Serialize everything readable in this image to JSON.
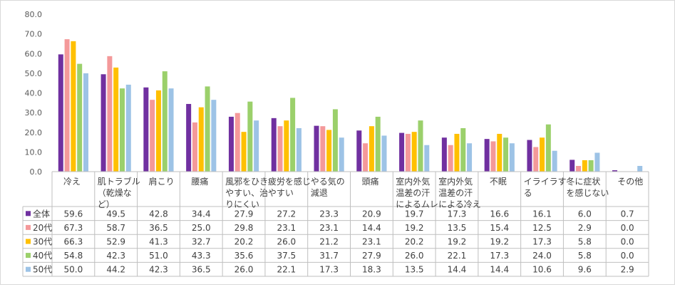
{
  "chart_data": {
    "type": "bar",
    "title": "",
    "xlabel": "",
    "ylabel": "",
    "ylim": [
      0,
      80
    ],
    "y_ticks": [
      "0.0",
      "10.0",
      "20.0",
      "30.0",
      "40.0",
      "50.0",
      "60.0",
      "70.0",
      "80.0"
    ],
    "grid": false,
    "legend": "left-of-table",
    "categories": [
      [
        "冷え"
      ],
      [
        "肌トラブル",
        "（乾燥な",
        "ど）"
      ],
      [
        "肩こり"
      ],
      [
        "腰痛"
      ],
      [
        "風邪をひき",
        "やすい、治",
        "りにくい"
      ],
      [
        "疲労を感じ",
        "やすい"
      ],
      [
        "やる気の",
        "減退"
      ],
      [
        "頭痛"
      ],
      [
        "室内外気",
        "温差の汗",
        "によるムレ"
      ],
      [
        "室内外気",
        "温差の汗",
        "による冷え"
      ],
      [
        "不眠"
      ],
      [
        "イライラす",
        "る"
      ],
      [
        "冬に症状",
        "を感じない"
      ],
      [
        "その他"
      ]
    ],
    "series": [
      {
        "name": "全体",
        "color": "#7030a0",
        "values": [
          59.6,
          49.5,
          42.8,
          34.4,
          27.9,
          27.2,
          23.3,
          20.9,
          19.7,
          17.3,
          16.6,
          16.1,
          6.0,
          0.7
        ],
        "labels": [
          "59.6",
          "49.5",
          "42.8",
          "34.4",
          "27.9",
          "27.2",
          "23.3",
          "20.9",
          "19.7",
          "17.3",
          "16.6",
          "16.1",
          "6.0",
          "0.7"
        ]
      },
      {
        "name": "20代",
        "color": "#f4999a",
        "values": [
          67.3,
          58.7,
          36.5,
          25.0,
          29.8,
          23.1,
          23.1,
          14.4,
          19.2,
          13.5,
          15.4,
          12.5,
          2.9,
          0.0
        ],
        "labels": [
          "67.3",
          "58.7",
          "36.5",
          "25.0",
          "29.8",
          "23.1",
          "23.1",
          "14.4",
          "19.2",
          "13.5",
          "15.4",
          "12.5",
          "2.9",
          "0.0"
        ]
      },
      {
        "name": "30代",
        "color": "#ffc000",
        "values": [
          66.3,
          52.9,
          41.3,
          32.7,
          20.2,
          26.0,
          21.2,
          23.1,
          20.2,
          19.2,
          19.2,
          17.3,
          5.8,
          0.0
        ],
        "labels": [
          "66.3",
          "52.9",
          "41.3",
          "32.7",
          "20.2",
          "26.0",
          "21.2",
          "23.1",
          "20.2",
          "19.2",
          "19.2",
          "17.3",
          "5.8",
          "0.0"
        ]
      },
      {
        "name": "40代",
        "color": "#9bd06b",
        "values": [
          54.8,
          42.3,
          51.0,
          43.3,
          35.6,
          37.5,
          31.7,
          27.9,
          26.0,
          22.1,
          17.3,
          24.0,
          5.8,
          0.0
        ],
        "labels": [
          "54.8",
          "42.3",
          "51.0",
          "43.3",
          "35.6",
          "37.5",
          "31.7",
          "27.9",
          "26.0",
          "22.1",
          "17.3",
          "24.0",
          "5.8",
          "0.0"
        ]
      },
      {
        "name": "50代",
        "color": "#9dc3e6",
        "values": [
          50.0,
          44.2,
          42.3,
          36.5,
          26.0,
          22.1,
          17.3,
          18.3,
          13.5,
          14.4,
          14.4,
          10.6,
          9.6,
          2.9
        ],
        "labels": [
          "50.0",
          "44.2",
          "42.3",
          "36.5",
          "26.0",
          "22.1",
          "17.3",
          "18.3",
          "13.5",
          "14.4",
          "14.4",
          "10.6",
          "9.6",
          "2.9"
        ]
      }
    ]
  }
}
